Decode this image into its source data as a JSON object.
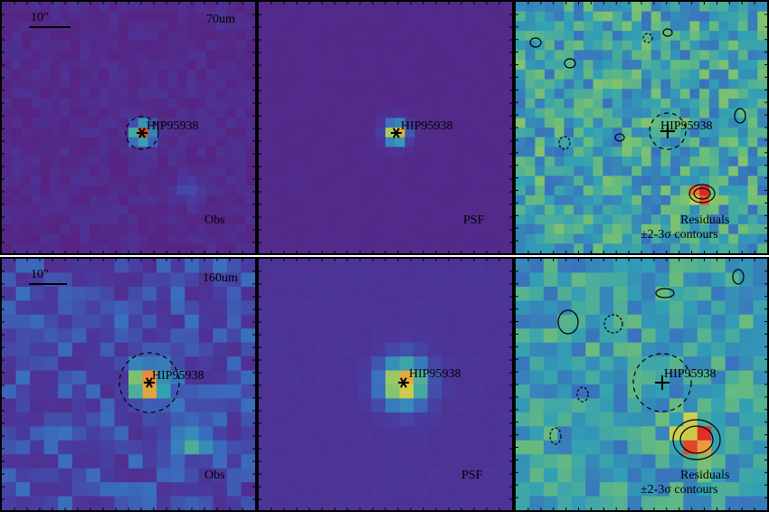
{
  "figure": {
    "target": "HIP95938",
    "scalebar_label": "10\"",
    "rows": [
      {
        "band": "70um",
        "panels": [
          {
            "kind": "obs",
            "caption": "Obs"
          },
          {
            "kind": "psf",
            "caption": "PSF"
          },
          {
            "kind": "res",
            "caption": "Residuals",
            "caption2": "±2-3σ contours"
          }
        ]
      },
      {
        "band": "160um",
        "panels": [
          {
            "kind": "obs",
            "caption": "Obs"
          },
          {
            "kind": "psf",
            "caption": "PSF"
          },
          {
            "kind": "res",
            "caption": "Residuals",
            "caption2": "±2-3σ contours"
          }
        ]
      }
    ],
    "colors": {
      "background_purple": "#5a2a8a",
      "psf_purple": "#5b2a94",
      "residual_mid": "#5fb08a",
      "source_peak": "#e8743a",
      "contour": "#000000"
    }
  }
}
